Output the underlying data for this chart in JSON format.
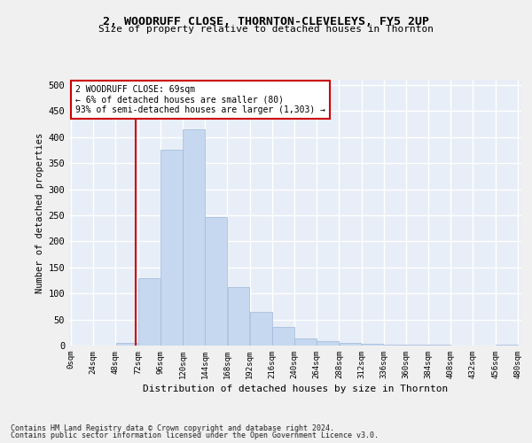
{
  "title_line1": "2, WOODRUFF CLOSE, THORNTON-CLEVELEYS, FY5 2UP",
  "title_line2": "Size of property relative to detached houses in Thornton",
  "xlabel": "Distribution of detached houses by size in Thornton",
  "ylabel": "Number of detached properties",
  "bin_edges": [
    0,
    24,
    48,
    72,
    96,
    120,
    144,
    168,
    192,
    216,
    240,
    264,
    288,
    312,
    336,
    360,
    384,
    408,
    432,
    456,
    480
  ],
  "bar_values": [
    0,
    0,
    5,
    130,
    375,
    415,
    247,
    112,
    65,
    35,
    13,
    8,
    5,
    3,
    2,
    1,
    1,
    0,
    0,
    2
  ],
  "bar_color": "#c5d8f0",
  "bar_edge_color": "#a0b8d8",
  "property_size": 69,
  "vline_color": "#cc0000",
  "annotation_line1": "2 WOODRUFF CLOSE: 69sqm",
  "annotation_line2": "← 6% of detached houses are smaller (80)",
  "annotation_line3": "93% of semi-detached houses are larger (1,303) →",
  "annotation_box_color": "#ffffff",
  "annotation_box_edge": "#cc0000",
  "ylim": [
    0,
    510
  ],
  "yticks": [
    0,
    50,
    100,
    150,
    200,
    250,
    300,
    350,
    400,
    450,
    500
  ],
  "background_color": "#e8eef7",
  "grid_color": "#ffffff",
  "footnote_line1": "Contains HM Land Registry data © Crown copyright and database right 2024.",
  "footnote_line2": "Contains public sector information licensed under the Open Government Licence v3.0."
}
